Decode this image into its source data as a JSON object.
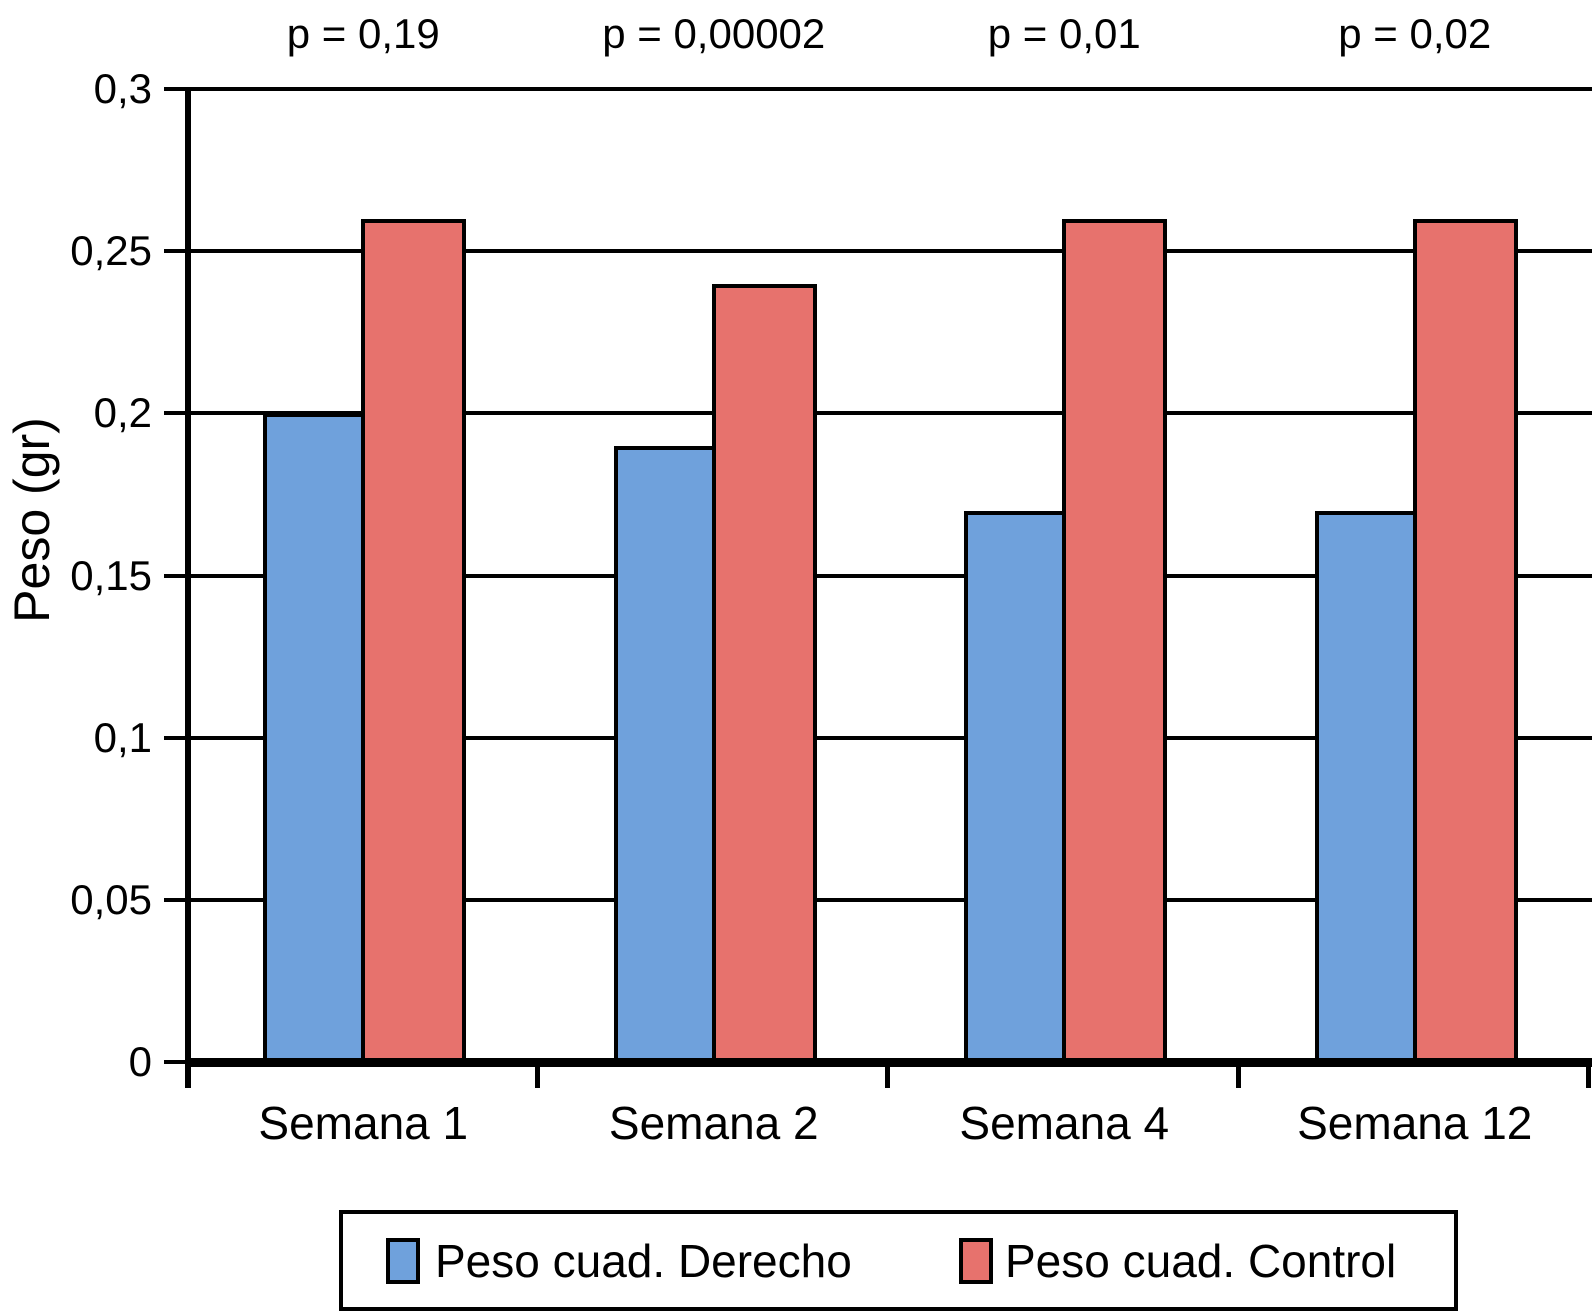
{
  "chart_data": {
    "type": "bar",
    "title": "",
    "ylabel": "Peso (gr)",
    "xlabel": "",
    "categories": [
      "Semana 1",
      "Semana 2",
      "Semana 4",
      "Semana 12"
    ],
    "series": [
      {
        "name": "Peso cuad. Derecho",
        "color": "#6FA1DC",
        "values": [
          0.2,
          0.19,
          0.17,
          0.17
        ]
      },
      {
        "name": "Peso cuad. Control",
        "color": "#E7726D",
        "values": [
          0.26,
          0.24,
          0.26,
          0.26
        ]
      }
    ],
    "p_values": [
      "p = 0,19",
      "p = 0,00002",
      "p = 0,01",
      "p = 0,02"
    ],
    "ylim": [
      0,
      0.3
    ],
    "yticks": [
      0,
      0.05,
      0.1,
      0.15,
      0.2,
      0.25,
      0.3
    ],
    "ytick_labels": [
      "0",
      "0,05",
      "0,1",
      "0,15",
      "0,2",
      "0,25",
      "0,3"
    ],
    "grid": true,
    "legend_position": "bottom",
    "axis_color": "#000000",
    "background_color": "#FFFFFF"
  }
}
